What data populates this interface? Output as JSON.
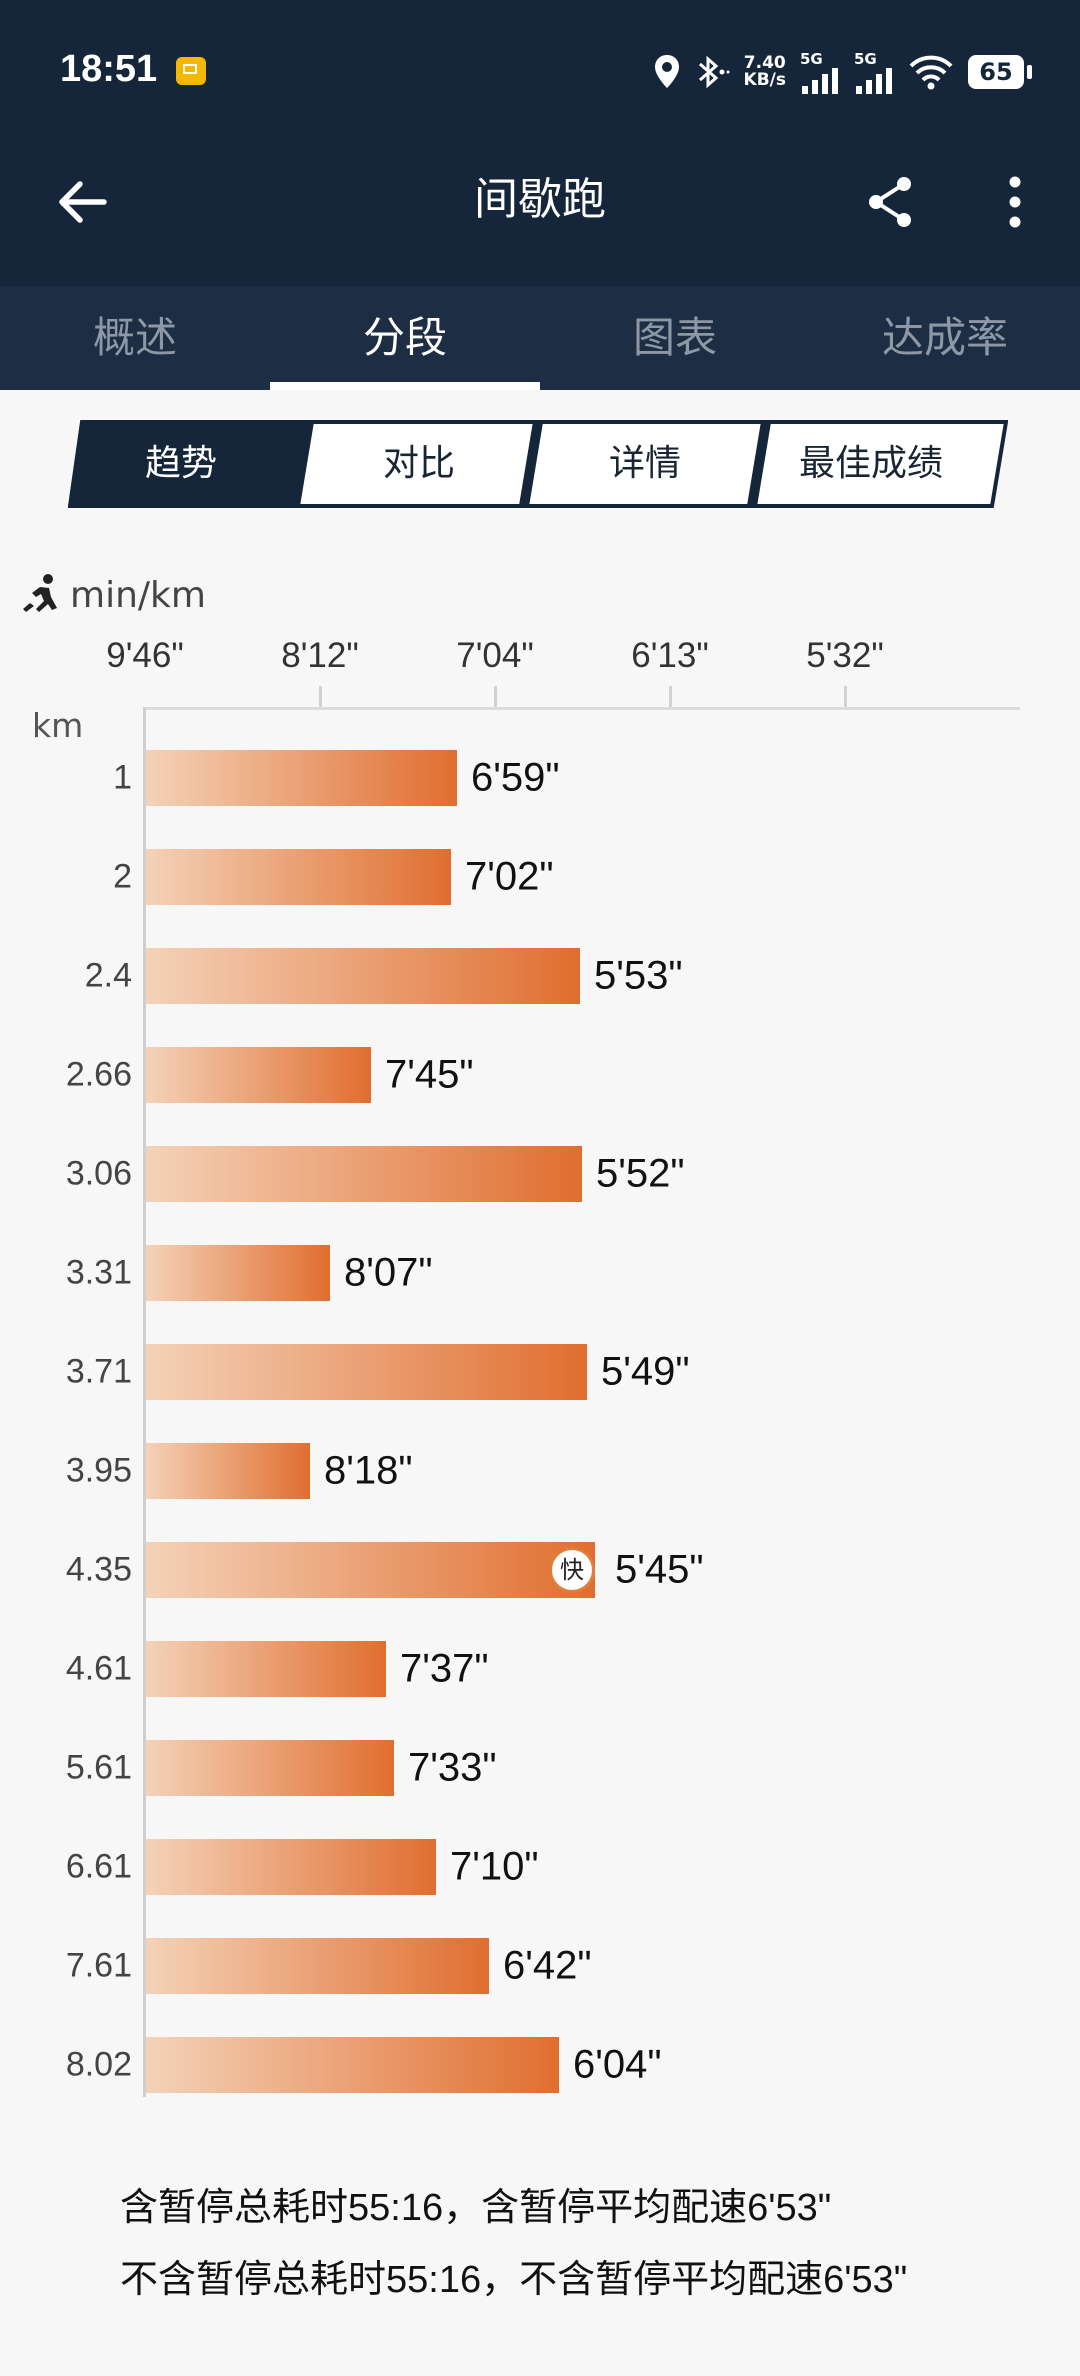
{
  "status_bar": {
    "time": "18:51",
    "net_speed_value": "7.40",
    "net_speed_unit": "KB/s",
    "signal1": "5G",
    "signal2": "5G",
    "battery": "65"
  },
  "header": {
    "title": "间歇跑"
  },
  "tabs": [
    {
      "label": "概述"
    },
    {
      "label": "分段"
    },
    {
      "label": "图表"
    },
    {
      "label": "达成率"
    }
  ],
  "segments": [
    {
      "label": "趋势"
    },
    {
      "label": "对比"
    },
    {
      "label": "详情"
    },
    {
      "label": "最佳成绩"
    }
  ],
  "chart_data": {
    "type": "bar",
    "orientation": "horizontal",
    "unit_label": "min/km",
    "category_axis_label": "km",
    "x_ticks": [
      "9'46\"",
      "8'12\"",
      "7'04\"",
      "6'13\"",
      "5'32\""
    ],
    "categories": [
      "1",
      "2",
      "2.4",
      "2.66",
      "3.06",
      "3.31",
      "3.71",
      "3.95",
      "4.35",
      "4.61",
      "5.61",
      "6.61",
      "7.61",
      "8.02"
    ],
    "values": [
      "6'59\"",
      "7'02\"",
      "5'53\"",
      "7'45\"",
      "5'52\"",
      "8'07\"",
      "5'49\"",
      "8'18\"",
      "5'45\"",
      "7'37\"",
      "7'33\"",
      "7'10\"",
      "6'42\"",
      "6'04\""
    ],
    "values_seconds": [
      419,
      422,
      353,
      465,
      352,
      487,
      349,
      498,
      345,
      457,
      453,
      430,
      402,
      364
    ],
    "fastest_badge": "快",
    "fastest_index": 8,
    "colors": {
      "bar_start": "#f4d2b8",
      "bar_end": "#e06e2f"
    }
  },
  "summary": {
    "line1": "含暂停总耗时55:16，含暂停平均配速6'53\"",
    "line2": "不含暂停总耗时55:16，不含暂停平均配速6'53\""
  }
}
